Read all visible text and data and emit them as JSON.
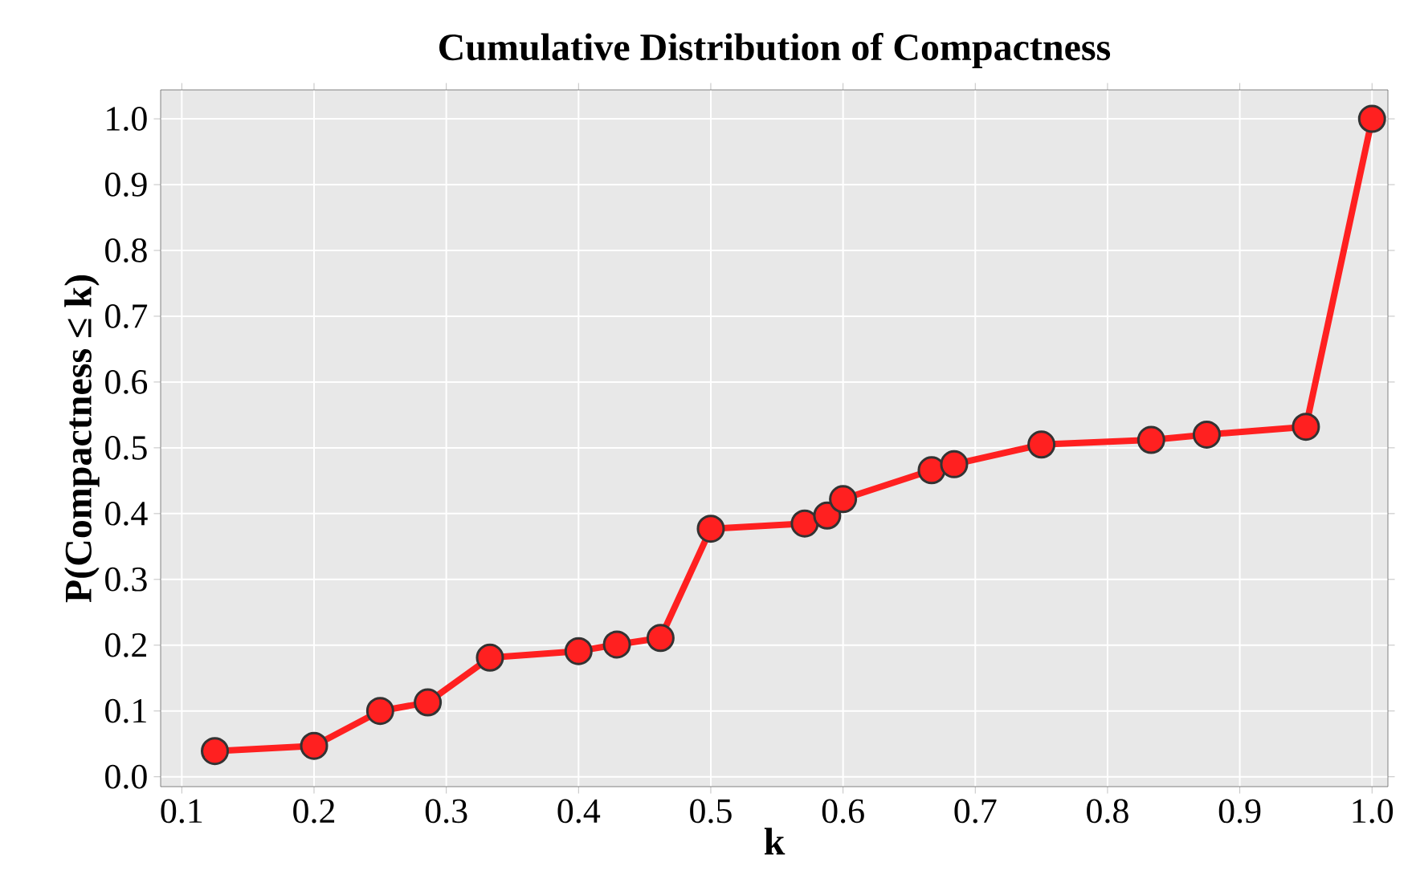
{
  "chart_data": {
    "type": "line",
    "title": "Cumulative Distribution of Compactness",
    "xlabel": "k",
    "ylabel": "P(Compactness ≤ k)",
    "x": [
      0.125,
      0.2,
      0.25,
      0.286,
      0.333,
      0.4,
      0.429,
      0.462,
      0.5,
      0.571,
      0.588,
      0.6,
      0.667,
      0.684,
      0.75,
      0.833,
      0.875,
      0.95,
      1.0
    ],
    "series": [
      {
        "color": "#ff2020",
        "values": [
          0.039,
          0.047,
          0.1,
          0.113,
          0.181,
          0.191,
          0.201,
          0.211,
          0.377,
          0.385,
          0.397,
          0.422,
          0.466,
          0.475,
          0.505,
          0.512,
          0.52,
          0.532,
          1.0
        ]
      }
    ],
    "xlim": [
      0.084,
      1.012
    ],
    "ylim": [
      -0.015,
      1.044
    ],
    "xticks": [
      0.1,
      0.2,
      0.3,
      0.4,
      0.5,
      0.6,
      0.7,
      0.8,
      0.9,
      {
        "value": 1,
        "label": "1.0"
      }
    ],
    "yticks": [
      {
        "value": 0,
        "label": "0.0"
      },
      0.1,
      0.2,
      0.3,
      0.4,
      0.5,
      0.6,
      0.7,
      0.8,
      0.9,
      {
        "value": 1,
        "label": "1.0"
      }
    ],
    "grid": true,
    "marker": "circle",
    "line_style": "solid"
  }
}
